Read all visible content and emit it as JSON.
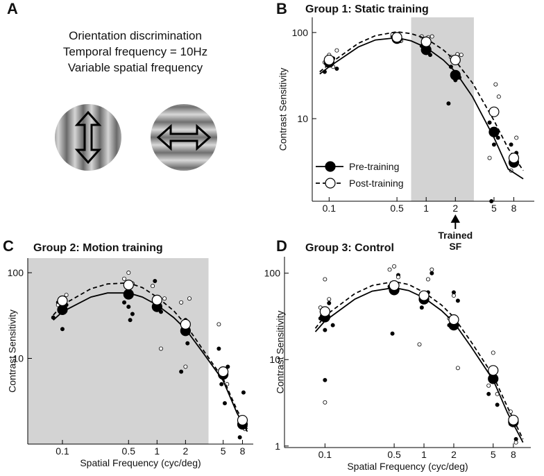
{
  "panel_a": {
    "panel": "A",
    "lines": [
      "Orientation discrimination",
      "Temporal frequency = 10Hz",
      "Variable spatial frequency"
    ]
  },
  "chart_data": [
    {
      "type": "scatter",
      "panel": "B",
      "title": "Group 1: Static training",
      "ylabel": "Contrast Sensitivity",
      "log_x": true,
      "log_y": true,
      "xlim": [
        0.067,
        13
      ],
      "ylim": [
        1.1,
        150
      ],
      "xticks": [
        0.1,
        0.5,
        1,
        2,
        5,
        8
      ],
      "yticks": [
        10,
        100
      ],
      "shade_x": [
        0.7,
        3.1
      ],
      "legend": "lower left",
      "annotation_lines": [
        "Trained",
        "SF"
      ],
      "annotation_x": 2,
      "series": [
        {
          "name": "Pre-training",
          "color": "#000000",
          "x": [
            0.1,
            0.5,
            1,
            2,
            5,
            8
          ],
          "values": [
            45,
            85,
            63,
            32,
            7,
            3.1
          ]
        },
        {
          "name": "Post-training",
          "color": "#ffffff",
          "x": [
            0.1,
            0.5,
            1,
            2,
            5,
            8
          ],
          "values": [
            48,
            88,
            78,
            48,
            12,
            3.5
          ]
        }
      ],
      "fits": [
        {
          "dash": false,
          "x": [
            0.08,
            0.1,
            0.2,
            0.3,
            0.5,
            0.7,
            1,
            1.5,
            2,
            3,
            5,
            7,
            10
          ],
          "values": [
            33,
            40,
            68,
            82,
            87,
            80,
            67,
            48,
            35,
            18,
            6,
            2.6,
            2
          ]
        },
        {
          "dash": true,
          "x": [
            0.08,
            0.1,
            0.2,
            0.3,
            0.5,
            0.7,
            1,
            1.5,
            2,
            3,
            5,
            7,
            10
          ],
          "values": [
            35,
            43,
            75,
            92,
            102,
            97,
            85,
            63,
            47,
            26,
            9.5,
            4.5,
            2.5
          ]
        }
      ],
      "individual": [
        {
          "color": "#000000",
          "x": [
            0.09,
            0.1,
            0.11,
            0.12,
            0.45,
            0.5,
            0.55,
            0.9,
            1,
            1.1,
            1.8,
            2,
            2.2,
            1.7,
            4.5,
            5,
            5.5,
            4.7,
            7.5,
            8.5
          ],
          "values": [
            35,
            45,
            50,
            38,
            90,
            85,
            80,
            70,
            60,
            55,
            40,
            28,
            30,
            15,
            9,
            5,
            6,
            1.1,
            5,
            4
          ]
        },
        {
          "color": "#ffffff",
          "x": [
            0.09,
            0.1,
            0.11,
            0.12,
            0.45,
            0.5,
            0.55,
            0.9,
            1.05,
            1.15,
            1.8,
            2.1,
            2.3,
            4.5,
            5.2,
            5.6,
            7.5,
            8.5
          ],
          "values": [
            45,
            55,
            40,
            62,
            95,
            92,
            80,
            90,
            88,
            90,
            52,
            56,
            55,
            3.5,
            25,
            18,
            2.5,
            6
          ]
        }
      ]
    },
    {
      "type": "scatter",
      "panel": "C",
      "title": "Group 2: Motion training",
      "xlabel": "Spatial Frequency (cyc/deg)",
      "ylabel": "Contrast Sensitivity",
      "log_x": true,
      "log_y": true,
      "xlim": [
        0.043,
        10.4
      ],
      "ylim": [
        1,
        148
      ],
      "xticks": [
        0.1,
        0.5,
        1,
        2,
        5,
        8
      ],
      "yticks": [
        10,
        100
      ],
      "shade_x": [
        0.043,
        3.5
      ],
      "series": [
        {
          "color": "#000000",
          "x": [
            0.1,
            0.5,
            1,
            2,
            5,
            8
          ],
          "values": [
            37,
            56,
            40,
            21,
            6.5,
            1.7
          ]
        },
        {
          "color": "#ffffff",
          "x": [
            0.1,
            0.5,
            1,
            2,
            5,
            8
          ],
          "values": [
            47,
            72,
            48,
            25,
            7,
            1.9
          ]
        }
      ],
      "fits": [
        {
          "dash": false,
          "x": [
            0.08,
            0.1,
            0.2,
            0.3,
            0.5,
            0.7,
            1,
            1.5,
            2,
            3,
            5,
            7,
            9
          ],
          "values": [
            28,
            35,
            52,
            58,
            58,
            52,
            42,
            30,
            22,
            12,
            5.5,
            2.3,
            1.4
          ]
        },
        {
          "dash": true,
          "x": [
            0.08,
            0.1,
            0.2,
            0.3,
            0.5,
            0.7,
            1,
            1.5,
            2,
            3,
            5,
            7,
            9
          ],
          "values": [
            32,
            42,
            65,
            74,
            76,
            67,
            52,
            36,
            25,
            13,
            5.8,
            2.5,
            1.5
          ]
        }
      ],
      "individual": [
        {
          "color": "#000000",
          "x": [
            0.08,
            0.09,
            0.1,
            0.11,
            0.45,
            0.5,
            0.55,
            0.52,
            0.95,
            1,
            1.1,
            1.8,
            2,
            2.1,
            4.5,
            4.8,
            5.2,
            5.6,
            7.5,
            8.2,
            8.6
          ],
          "values": [
            30,
            45,
            22,
            42,
            45,
            40,
            33,
            28,
            80,
            45,
            35,
            7,
            28,
            15,
            13,
            5,
            3,
            8,
            1.2,
            4,
            1.6
          ]
        },
        {
          "color": "#ffffff",
          "x": [
            0.09,
            0.1,
            0.11,
            0.45,
            0.5,
            0.55,
            0.9,
            1.1,
            1.2,
            1.8,
            2,
            2.2,
            4.5,
            5,
            5.5,
            7.5,
            8.5
          ],
          "values": [
            42,
            50,
            55,
            85,
            100,
            75,
            70,
            13,
            50,
            45,
            8,
            50,
            25,
            7,
            5,
            2,
            1.5
          ]
        }
      ]
    },
    {
      "type": "scatter",
      "panel": "D",
      "title": "Group 3: Control",
      "xlabel": "Spatial Frequency (cyc/deg)",
      "ylabel": "Contrast Sensitivity",
      "log_x": true,
      "log_y": true,
      "xlim": [
        0.039,
        12
      ],
      "ylim": [
        0.96,
        155
      ],
      "xticks": [
        0.1,
        0.5,
        1,
        2,
        5,
        8
      ],
      "yticks": [
        1,
        10,
        100
      ],
      "series": [
        {
          "color": "#000000",
          "x": [
            0.1,
            0.5,
            1,
            2,
            5,
            8
          ],
          "values": [
            31,
            64,
            50,
            25,
            6,
            1.9
          ]
        },
        {
          "color": "#ffffff",
          "x": [
            0.1,
            0.5,
            1,
            2,
            5,
            8
          ],
          "values": [
            36,
            72,
            55,
            29,
            7.5,
            2
          ]
        }
      ],
      "fits": [
        {
          "dash": false,
          "x": [
            0.08,
            0.1,
            0.2,
            0.3,
            0.5,
            0.7,
            1,
            1.5,
            2,
            3,
            5,
            7,
            10
          ],
          "values": [
            21,
            28,
            50,
            62,
            68,
            63,
            52,
            37,
            27,
            14,
            5.8,
            2.4,
            1.1
          ]
        },
        {
          "dash": true,
          "x": [
            0.08,
            0.1,
            0.2,
            0.3,
            0.5,
            0.7,
            1,
            1.5,
            2,
            3,
            5,
            7,
            10
          ],
          "values": [
            23,
            32,
            58,
            72,
            80,
            74,
            60,
            43,
            31,
            16,
            6.5,
            2.8,
            1.2
          ]
        }
      ],
      "individual": [
        {
          "color": "#000000",
          "x": [
            0.09,
            0.1,
            0.11,
            0.12,
            0.1,
            0.45,
            0.5,
            0.55,
            0.48,
            0.95,
            1,
            1.1,
            1.2,
            1.8,
            2,
            2.2,
            4.5,
            5,
            5.5,
            7.5,
            8.5
          ],
          "values": [
            30,
            22,
            45,
            25,
            5.8,
            70,
            60,
            95,
            20,
            40,
            48,
            60,
            100,
            25,
            60,
            48,
            4,
            7,
            3,
            1.8,
            1.2
          ]
        },
        {
          "color": "#ffffff",
          "x": [
            0.09,
            0.1,
            0.11,
            0.1,
            0.45,
            0.5,
            0.55,
            0.9,
            1.1,
            1.2,
            1.8,
            2,
            2.2,
            4.5,
            5,
            5.5,
            7.5,
            8.5
          ],
          "values": [
            40,
            85,
            50,
            3.2,
            110,
            120,
            90,
            15,
            85,
            110,
            30,
            55,
            8,
            5,
            12,
            4,
            2.5,
            1.1
          ]
        }
      ]
    }
  ]
}
